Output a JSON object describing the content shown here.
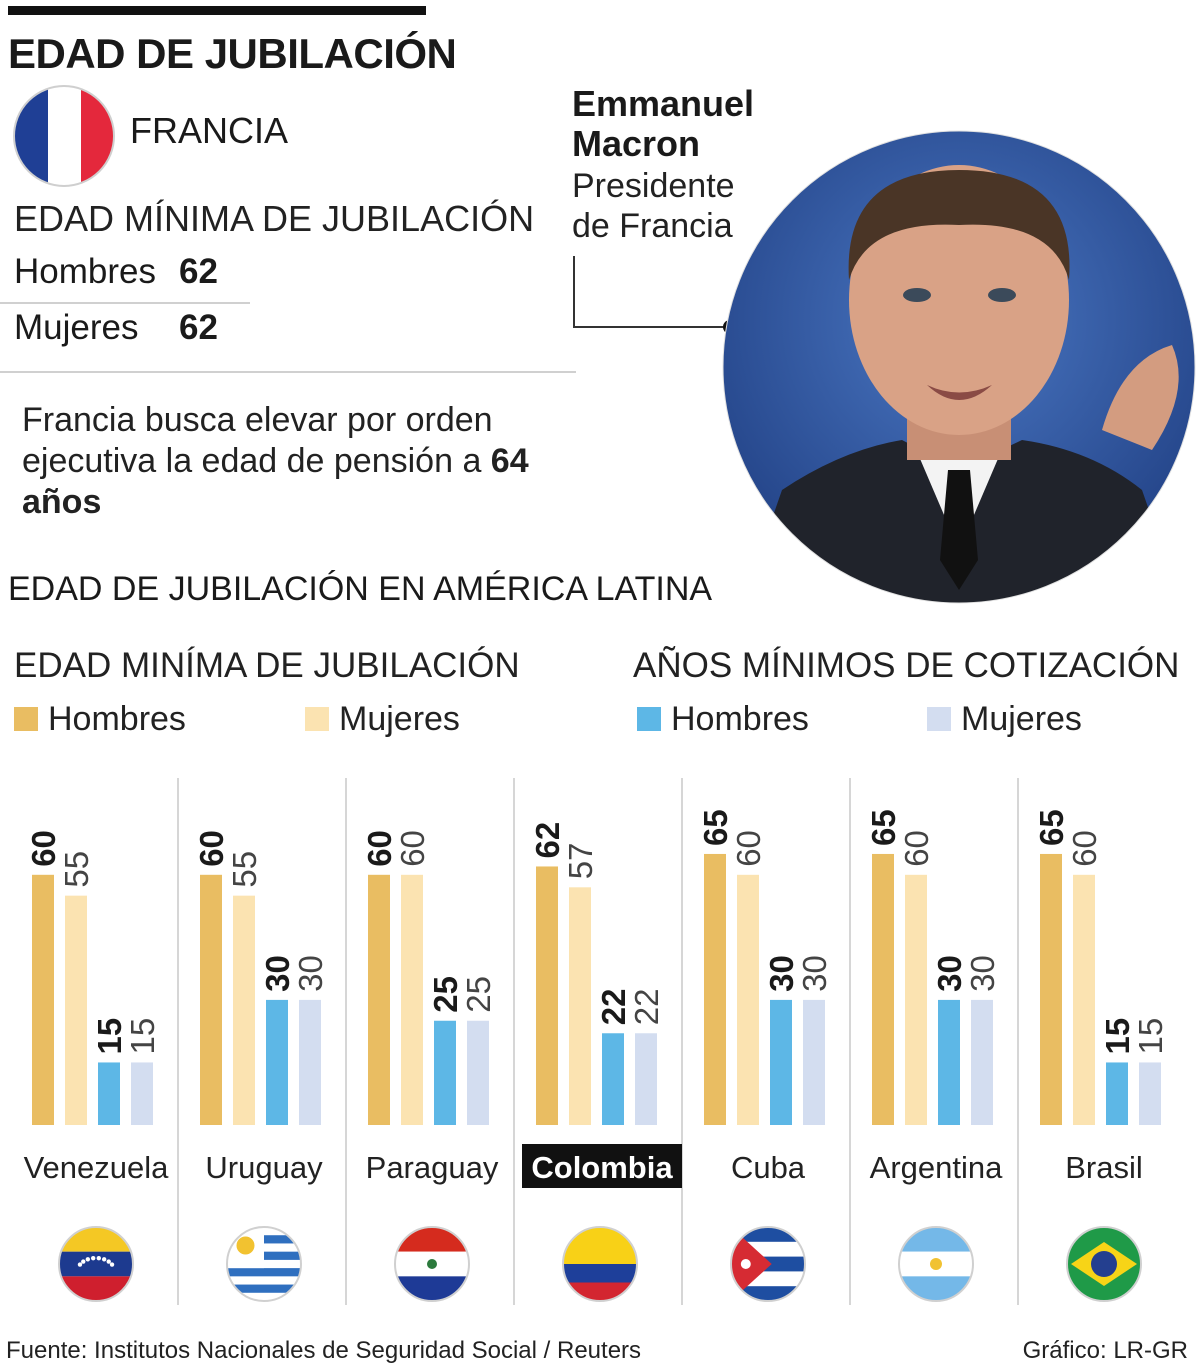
{
  "title": "EDAD DE JUBILACIÓN",
  "france": {
    "name": "FRANCIA",
    "min_age_heading": "EDAD MÍNIMA DE JUBILACIÓN",
    "men_label": "Hombres",
    "men_value": "62",
    "women_label": "Mujeres",
    "women_value": "62",
    "note_text": "Francia busca elevar por orden ejecutiva la edad de pensión a ",
    "note_bold": "64 años"
  },
  "person": {
    "name_line1": "Emmanuel",
    "name_line2": "Macron",
    "role_line1": "Presidente",
    "role_line2": "de Francia"
  },
  "latam_title": "EDAD DE JUBILACIÓN EN AMÉRICA LATINA",
  "legend": {
    "age_heading": "EDAD MINÍMA DE JUBILACIÓN",
    "contrib_heading": "AÑOS MÍNIMOS DE COTIZACIÓN",
    "men": "Hombres",
    "women": "Mujeres"
  },
  "colors": {
    "age_men": "#e9bd62",
    "age_women": "#fbe3b1",
    "contrib_men": "#5db7e6",
    "contrib_women": "#d3ddf0"
  },
  "chart_data": {
    "type": "bar",
    "title": "EDAD DE JUBILACIÓN EN AMÉRICA LATINA",
    "categories": [
      "Venezuela",
      "Uruguay",
      "Paraguay",
      "Colombia",
      "Cuba",
      "Argentina",
      "Brasil"
    ],
    "highlight": "Colombia",
    "ylim": [
      0,
      70
    ],
    "series": [
      {
        "name": "Edad mínima de jubilación - Hombres",
        "values": [
          60,
          60,
          60,
          62,
          65,
          65,
          65
        ]
      },
      {
        "name": "Edad mínima de jubilación - Mujeres",
        "values": [
          55,
          55,
          60,
          57,
          60,
          60,
          60
        ]
      },
      {
        "name": "Años mínimos de cotización - Hombres",
        "values": [
          15,
          30,
          25,
          22,
          30,
          30,
          15
        ]
      },
      {
        "name": "Años mínimos de cotización - Mujeres",
        "values": [
          15,
          30,
          25,
          22,
          30,
          30,
          15
        ]
      }
    ]
  },
  "source": "Fuente: Institutos Nacionales de Seguridad Social / Reuters",
  "credit": "Gráfico: LR-GR"
}
